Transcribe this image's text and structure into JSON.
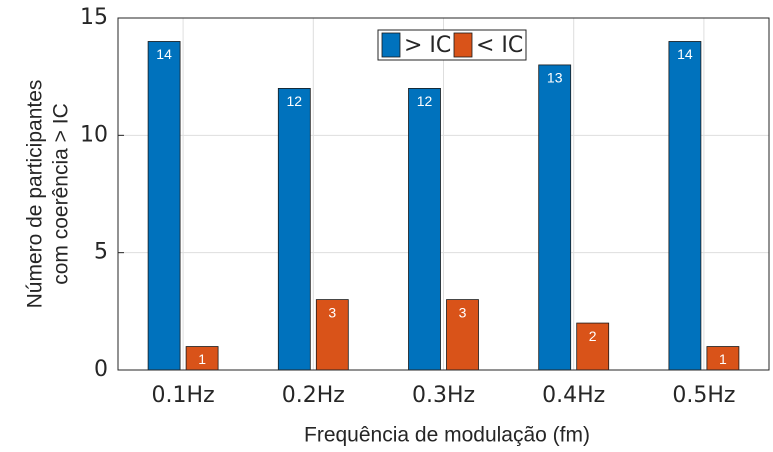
{
  "chart_data": {
    "type": "bar",
    "categories": [
      "0.1Hz",
      "0.2Hz",
      "0.3Hz",
      "0.4Hz",
      "0.5Hz"
    ],
    "series": [
      {
        "name": "> IC",
        "color": "#0072bd",
        "values": [
          14,
          12,
          12,
          13,
          14
        ]
      },
      {
        "name": "< IC",
        "color": "#d95319",
        "values": [
          1,
          3,
          3,
          2,
          1
        ]
      }
    ],
    "ylabel": [
      "Número de participantes",
      "com coerência > IC"
    ],
    "xlabel": "Frequência de modulação (fm)",
    "ylim": [
      0,
      15
    ],
    "yticks": [
      0,
      5,
      10,
      15
    ],
    "grid": true,
    "legend": "top"
  }
}
